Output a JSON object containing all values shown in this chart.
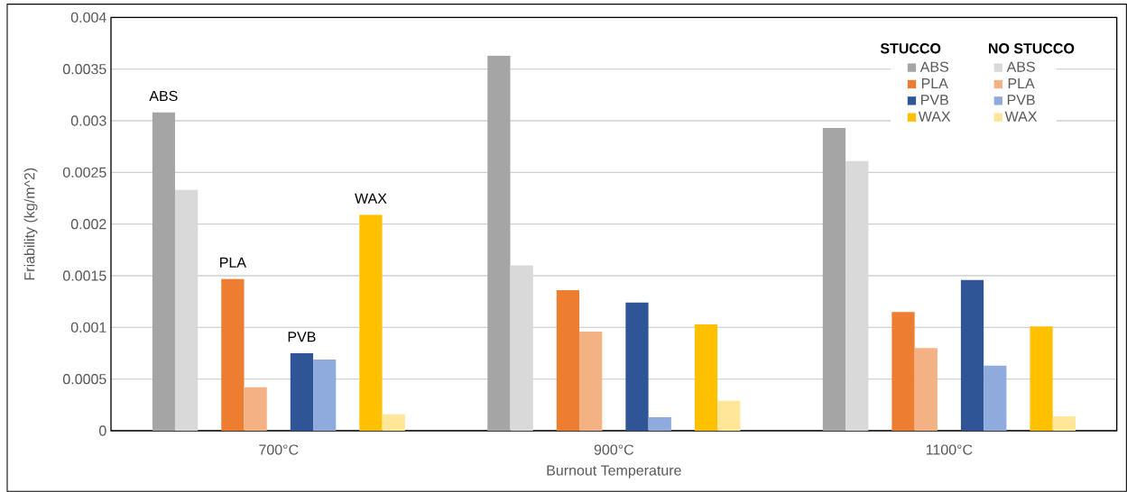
{
  "chart_data": {
    "type": "bar",
    "xlabel": "Burnout Temperature",
    "ylabel": "Friability (kg/m^2)",
    "categories": [
      "700°C",
      "900°C",
      "1100°C"
    ],
    "series": [
      {
        "name": "ABS",
        "color": "#a5a5a5",
        "values": [
          0.00308,
          0.00363,
          0.00293
        ]
      },
      {
        "name": "ABS",
        "color": "#d9d9d9",
        "values": [
          0.00233,
          0.0016,
          0.00261
        ]
      },
      {
        "name": "PLA",
        "color": "#ed7d31",
        "values": [
          0.00147,
          0.00136,
          0.00115
        ]
      },
      {
        "name": "PLA",
        "color": "#f4b183",
        "values": [
          0.00042,
          0.00096,
          0.0008
        ]
      },
      {
        "name": "PVB",
        "color": "#2f5597",
        "values": [
          0.00075,
          0.00124,
          0.00146
        ]
      },
      {
        "name": "PVB",
        "color": "#8faadc",
        "values": [
          0.00069,
          0.00013,
          0.00063
        ]
      },
      {
        "name": "WAX",
        "color": "#ffc000",
        "values": [
          0.00209,
          0.00103,
          0.00101
        ]
      },
      {
        "name": "WAX",
        "color": "#ffe699",
        "values": [
          0.00016,
          0.00029,
          0.00014
        ]
      }
    ],
    "ylim": [
      0,
      0.004
    ],
    "yticks": [
      0,
      0.0005,
      0.001,
      0.0015,
      0.002,
      0.0025,
      0.003,
      0.0035,
      0.004
    ],
    "grid": "y",
    "legend": "top right",
    "annotations": [
      "STUCCO",
      "NO STUCCO",
      "ABS",
      "PLA",
      "PVB",
      "WAX"
    ]
  }
}
